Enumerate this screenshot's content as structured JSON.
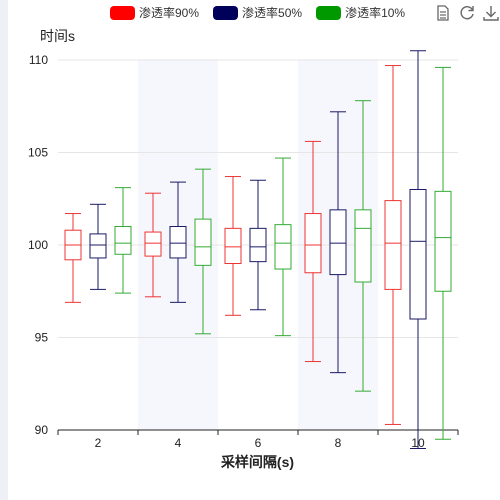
{
  "legend": [
    {
      "name": "渗透率90%",
      "color": "#ff0000"
    },
    {
      "name": "渗透率50%",
      "color": "#00005a"
    },
    {
      "name": "渗透率10%",
      "color": "#009900"
    }
  ],
  "toolbox": [
    "data-view-icon",
    "refresh-icon",
    "download-icon"
  ],
  "chart_data": {
    "type": "boxplot",
    "title": "",
    "xlabel": "采样间隔(s)",
    "ylabel": "时间s",
    "categories": [
      "2",
      "4",
      "6",
      "8",
      "10"
    ],
    "ylim": [
      90,
      110
    ],
    "yticks": [
      90,
      95,
      100,
      105,
      110
    ],
    "grid": true,
    "shaded_categories": [
      "4",
      "8"
    ],
    "legend_position": "top",
    "series": [
      {
        "name": "渗透率90%",
        "color": "#ee3333",
        "boxes": [
          {
            "min": 96.9,
            "q1": 99.2,
            "median": 100.0,
            "q3": 100.8,
            "max": 101.7
          },
          {
            "min": 97.2,
            "q1": 99.4,
            "median": 100.1,
            "q3": 100.7,
            "max": 102.8
          },
          {
            "min": 96.2,
            "q1": 99.0,
            "median": 99.9,
            "q3": 100.9,
            "max": 103.7
          },
          {
            "min": 93.7,
            "q1": 98.5,
            "median": 100.0,
            "q3": 101.7,
            "max": 105.6
          },
          {
            "min": 90.3,
            "q1": 97.6,
            "median": 100.1,
            "q3": 102.4,
            "max": 109.7
          }
        ]
      },
      {
        "name": "渗透率50%",
        "color": "#1a1a66",
        "boxes": [
          {
            "min": 97.6,
            "q1": 99.3,
            "median": 100.0,
            "q3": 100.6,
            "max": 102.2
          },
          {
            "min": 96.9,
            "q1": 99.3,
            "median": 100.1,
            "q3": 101.0,
            "max": 103.4
          },
          {
            "min": 96.5,
            "q1": 99.1,
            "median": 99.9,
            "q3": 100.9,
            "max": 103.5
          },
          {
            "min": 93.1,
            "q1": 98.4,
            "median": 100.1,
            "q3": 101.9,
            "max": 107.2
          },
          {
            "min": 89.0,
            "q1": 96.0,
            "median": 100.2,
            "q3": 103.0,
            "max": 110.5
          }
        ]
      },
      {
        "name": "渗透率10%",
        "color": "#33aa33",
        "boxes": [
          {
            "min": 97.4,
            "q1": 99.5,
            "median": 100.1,
            "q3": 101.0,
            "max": 103.1
          },
          {
            "min": 95.2,
            "q1": 98.9,
            "median": 99.9,
            "q3": 101.4,
            "max": 104.1
          },
          {
            "min": 95.1,
            "q1": 98.7,
            "median": 100.1,
            "q3": 101.1,
            "max": 104.7
          },
          {
            "min": 92.1,
            "q1": 98.0,
            "median": 100.9,
            "q3": 101.9,
            "max": 107.8
          },
          {
            "min": 89.5,
            "q1": 97.5,
            "median": 100.4,
            "q3": 102.9,
            "max": 109.6
          }
        ]
      }
    ]
  }
}
